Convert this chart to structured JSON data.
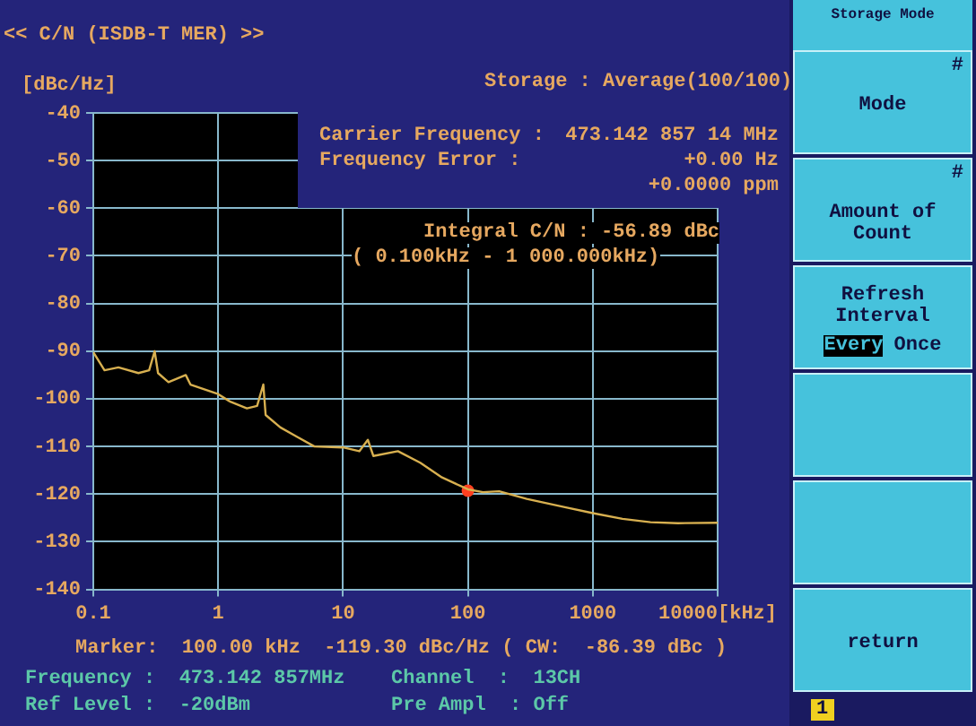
{
  "chart_data": {
    "type": "line",
    "title": "<< C/N (ISDB-T MER) >>",
    "subtitle": "Storage : Average(100/100)",
    "ylabel": "[dBc/Hz]",
    "log": "x",
    "xlim": [
      0.1,
      10000
    ],
    "xticks": [
      0.1,
      1,
      10,
      100,
      1000,
      {
        "value": 10000,
        "label": "10000[kHz]"
      }
    ],
    "ylim": [
      -140,
      -40
    ],
    "yticks": [
      -140,
      -130,
      -120,
      -110,
      -100,
      -90,
      -80,
      -70,
      -60,
      -50,
      -40
    ],
    "grid": true,
    "legend": false,
    "series": [
      {
        "color": "#d8b050",
        "x": [
          0.1,
          0.123,
          0.159,
          0.23,
          0.28,
          0.31,
          0.33,
          0.4,
          0.55,
          0.6,
          1,
          1.25,
          1.7,
          2.05,
          2.3,
          2.4,
          3.15,
          4.3,
          5.9,
          10,
          13.5,
          15.8,
          17.5,
          27.5,
          41.5,
          62,
          100,
          132,
          178,
          296,
          610,
          1000,
          1730,
          2900,
          4800,
          10000
        ],
        "values": [
          -90.2,
          -94,
          -93.4,
          -94.6,
          -94,
          -90,
          -94.6,
          -96.5,
          -95,
          -97,
          -99,
          -100.6,
          -102,
          -101.5,
          -97,
          -103.4,
          -106,
          -108,
          -110,
          -110.2,
          -111,
          -108.6,
          -112,
          -111,
          -113.4,
          -116.5,
          -119,
          -119.6,
          -119.4,
          -121,
          -122.8,
          -124,
          -125.2,
          -125.9,
          -126.1,
          -126
        ]
      },
      {
        "type": "scatter",
        "color": "#ff4020",
        "x": [
          100
        ],
        "values": [
          -119.3
        ]
      }
    ],
    "annotations": [
      "Carrier Frequency :",
      "473.142 857 14 MHz",
      "Frequency Error :",
      "+0.00 Hz",
      "+0.0000 ppm",
      "Integral C/N : -56.89 dBc",
      "( 0.100kHz - 1 000.000kHz)",
      "Marker:  100.00 kHz  -119.30 dBc/Hz ( CW:  -86.39 dBc )",
      "Frequency :  473.142 857MHz",
      "Channel  :  13CH",
      "Ref Level :  -20dBm",
      "Pre Ampl  : Off",
      "Storage Mode",
      "#",
      "Mode",
      "#",
      "Amount of Count",
      "Refresh Interval",
      "Every",
      "Once",
      "return",
      "1"
    ]
  }
}
